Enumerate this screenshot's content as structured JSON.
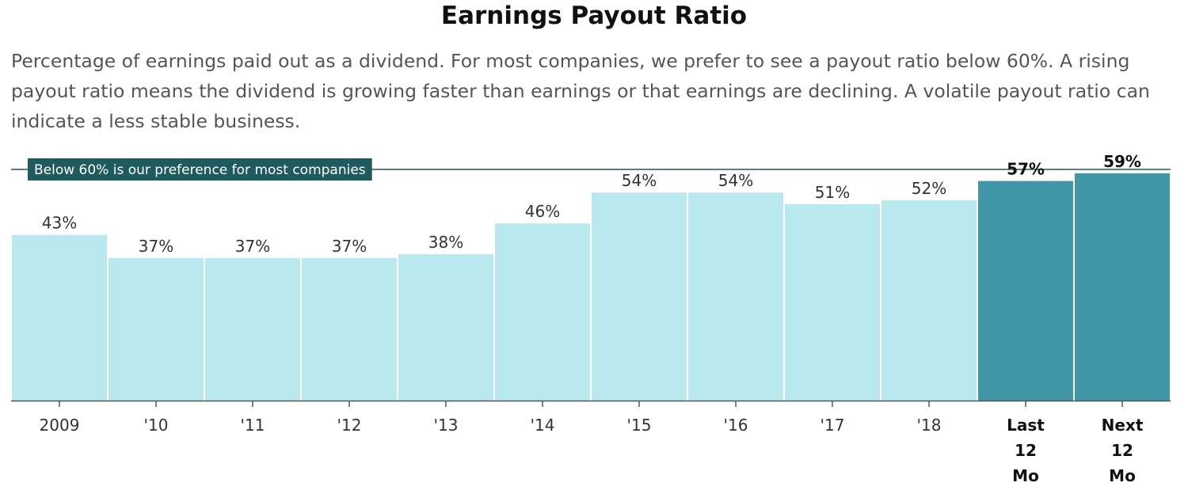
{
  "chart_data": {
    "type": "bar",
    "title": "Earnings Payout Ratio",
    "subtitle": "Percentage of earnings paid out as a dividend. For most companies, we prefer to see a payout ratio below 60%. A rising payout ratio means the dividend is growing faster than earnings or that earnings are declining. A volatile payout ratio can indicate a less stable business.",
    "categories": [
      "2009",
      "'10",
      "'11",
      "'12",
      "'13",
      "'14",
      "'15",
      "'16",
      "'17",
      "'18",
      "Last 12 Mo",
      "Next 12 Mo"
    ],
    "values": [
      43,
      37,
      37,
      37,
      38,
      46,
      54,
      54,
      51,
      52,
      57,
      59
    ],
    "value_labels": [
      "43%",
      "37%",
      "37%",
      "37%",
      "38%",
      "46%",
      "54%",
      "54%",
      "51%",
      "52%",
      "57%",
      "59%"
    ],
    "highlighted": [
      false,
      false,
      false,
      false,
      false,
      false,
      false,
      false,
      false,
      false,
      true,
      true
    ],
    "ylim": [
      0,
      60
    ],
    "reference_line": {
      "value": 60,
      "label": "Below 60% is our preference for most companies"
    },
    "grid": false,
    "colors": {
      "bar": "#b9e8ee",
      "bar_highlight": "#4197a8",
      "reference_line": "#1e5a5e",
      "reference_label_bg": "#1e5a5e",
      "axis": "#555555"
    }
  }
}
